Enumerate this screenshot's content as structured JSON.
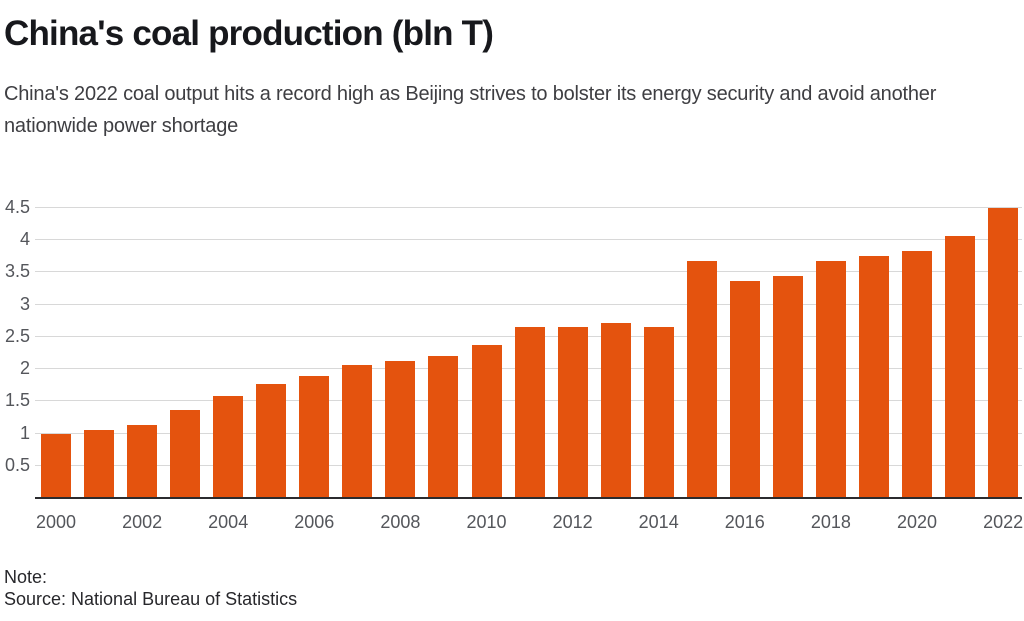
{
  "header": {
    "title": "China's coal production (bln T)",
    "subtitle": "China's 2022 coal output hits a record high as Beijing strives to bolster its energy security and avoid another nationwide power shortage"
  },
  "chart_data": {
    "type": "bar",
    "title": "China's coal production (bln T)",
    "subtitle": "China's 2022 coal output hits a record high as Beijing strives to bolster its energy security and avoid another nationwide power shortage",
    "xlabel": "",
    "ylabel": "",
    "categories": [
      "2000",
      "2001",
      "2002",
      "2003",
      "2004",
      "2005",
      "2006",
      "2007",
      "2008",
      "2009",
      "2010",
      "2011",
      "2012",
      "2013",
      "2014",
      "2015",
      "2016",
      "2017",
      "2018",
      "2019",
      "2020",
      "2021",
      "2022"
    ],
    "values": [
      1.0,
      1.06,
      1.14,
      1.36,
      1.58,
      1.77,
      1.9,
      2.06,
      2.12,
      2.2,
      2.38,
      2.65,
      2.66,
      2.72,
      2.65,
      3.68,
      3.36,
      3.45,
      3.68,
      3.75,
      3.83,
      4.07,
      4.5
    ],
    "ylim": [
      0,
      4.5
    ],
    "yticks": [
      0.5,
      1,
      1.5,
      2,
      2.5,
      3,
      3.5,
      4,
      4.5
    ],
    "xtick_labels": [
      "2000",
      "2002",
      "2004",
      "2006",
      "2008",
      "2010",
      "2012",
      "2014",
      "2016",
      "2018",
      "2020",
      "2022"
    ],
    "grid": true,
    "legend": "none",
    "bar_color": "#e4530e",
    "gridline_color": "#d8d8d8",
    "axis_line_color": "#2b2b2e",
    "tick_label_color": "#54565b"
  },
  "footer": {
    "note": "Note:",
    "source": "Source: National Bureau of Statistics"
  }
}
